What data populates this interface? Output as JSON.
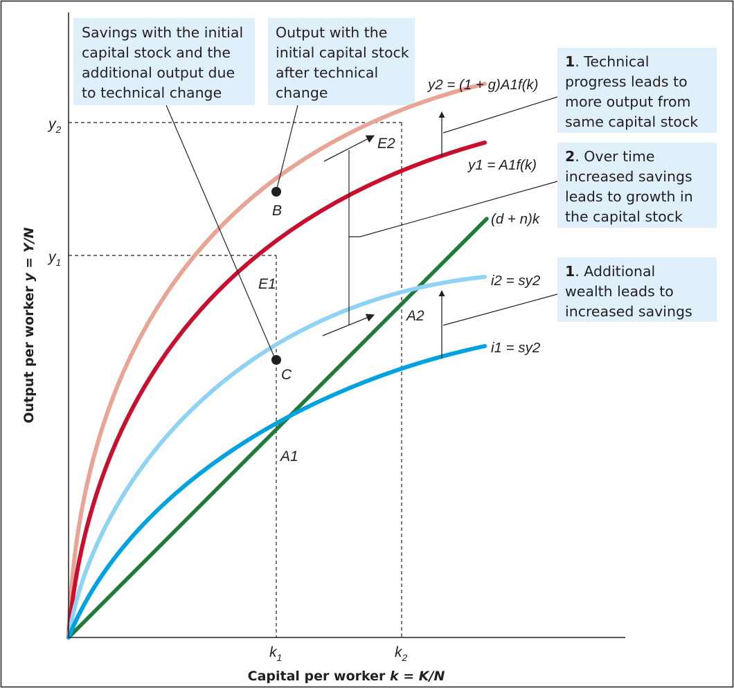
{
  "chart_data": {
    "type": "line",
    "title": "",
    "xlabel": {
      "prefix": "Capital per worker ",
      "expr": "k = K/N"
    },
    "ylabel": {
      "prefix": "Output per worker ",
      "expr": "y = Y/N"
    },
    "ticks": {
      "x": [
        {
          "base": "k",
          "sub": "1"
        },
        {
          "base": "k",
          "sub": "2"
        }
      ],
      "y": [
        {
          "base": "y",
          "sub": "1"
        },
        {
          "base": "y",
          "sub": "2"
        }
      ]
    },
    "series": [
      {
        "name": "y2 = (1 + g)A1f(k)",
        "color": "#e8a495"
      },
      {
        "name": "y1 = A1f(k)",
        "color": "#c8102e"
      },
      {
        "name": "(d + n)k",
        "color": "#1e7b3a"
      },
      {
        "name": "i2 = sy2",
        "color": "#8fd3f4"
      },
      {
        "name": "i1 = sy2",
        "color": "#00a3e0"
      }
    ],
    "points": {
      "A1": "A1",
      "A2": "A2",
      "B": "B",
      "C": "C",
      "E1": "E1",
      "E2": "E2"
    },
    "annotations": {
      "savings": [
        "Savings with the initial",
        "capital stock and the",
        "additional output due",
        "to technical change"
      ],
      "output": [
        "Output with the",
        "initial capital stock",
        "after technical",
        "change"
      ],
      "tech": {
        "num": "1",
        "lines": [
          ". Technical",
          "progress leads to",
          "more output from",
          "same capital stock"
        ]
      },
      "overtime": {
        "num": "2",
        "lines": [
          ". Over time",
          "increased savings",
          "leads to growth in",
          "the capital stock"
        ]
      },
      "wealth": {
        "num": "1",
        "lines": [
          ". Additional",
          "wealth leads to",
          "increased savings"
        ]
      }
    },
    "colors": {
      "axis": "#231f20",
      "box": "#dff0fb"
    }
  }
}
